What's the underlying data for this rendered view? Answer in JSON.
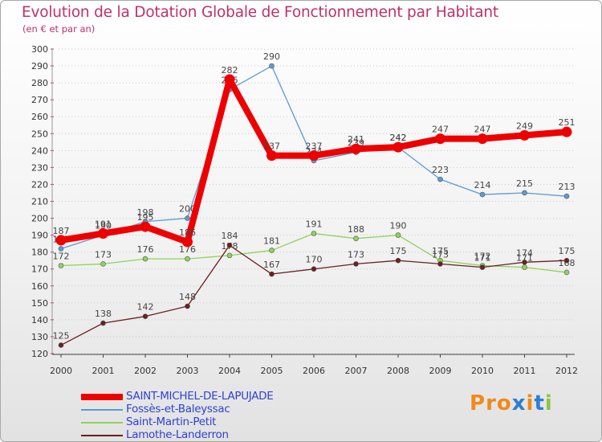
{
  "header": {
    "title": "Evolution de la Dotation Globale de Fonctionnement par Habitant",
    "subtitle": "(en € et par an)"
  },
  "chart_data": {
    "type": "line",
    "title": "Evolution de la Dotation Globale de Fonctionnement par Habitant",
    "subtitle": "(en € et par an)",
    "xlabel": "",
    "ylabel": "",
    "x": [
      "2000",
      "2001",
      "2002",
      "2003",
      "2004",
      "2005",
      "2006",
      "2007",
      "2008",
      "2009",
      "2010",
      "2011",
      "2012"
    ],
    "ylim": [
      120,
      300
    ],
    "ytick_step": 10,
    "grid": "horizontal dotted",
    "legend_position": "bottom-left",
    "series": [
      {
        "name": "Fossès-et-Baleyssac",
        "color": "#5b9bd5",
        "values": [
          182,
          190,
          198,
          200,
          276,
          290,
          234,
          239,
          242,
          223,
          214,
          215,
          213
        ]
      },
      {
        "name": "Saint-Martin-Petit",
        "color": "#8fd35a",
        "values": [
          172,
          173,
          176,
          176,
          178,
          181,
          191,
          188,
          190,
          175,
          172,
          171,
          168
        ]
      },
      {
        "name": "Lamothe-Landerron",
        "color": "#6b1f1f",
        "values": [
          125,
          138,
          142,
          148,
          184,
          167,
          170,
          173,
          175,
          173,
          171,
          174,
          175
        ]
      },
      {
        "name": "SAINT-MICHEL-DE-LAPUJADE",
        "color": "#ee0000",
        "highlight": true,
        "values": [
          187,
          191,
          195,
          186,
          282,
          237,
          237,
          241,
          242,
          247,
          247,
          249,
          251
        ]
      }
    ]
  },
  "legend": {
    "items": [
      {
        "label": "SAINT-MICHEL-DE-LAPUJADE",
        "color": "#ee0000"
      },
      {
        "label": "Fossès-et-Baleyssac",
        "color": "#5b9bd5"
      },
      {
        "label": "Saint-Martin-Petit",
        "color": "#8fd35a"
      },
      {
        "label": "Lamothe-Landerron",
        "color": "#6b1f1f"
      }
    ]
  },
  "logo": {
    "text": "Proxiti",
    "colors": [
      "#f08a1c",
      "#f08a1c",
      "#f08a1c",
      "#2a7fd0",
      "#f08a1c",
      "#2a7fd0",
      "#8cc63f"
    ]
  }
}
